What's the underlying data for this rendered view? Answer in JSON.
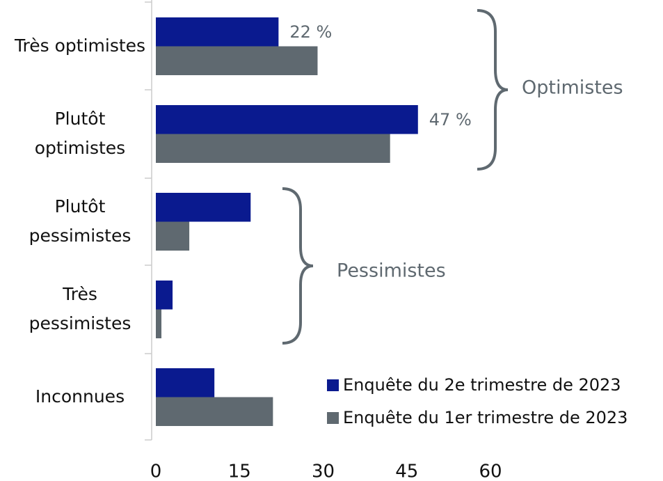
{
  "chart_data": {
    "type": "hbar",
    "categories": [
      "Très optimistes",
      "Plutôt optimistes",
      "Plutôt pessimistes",
      "Très pessimistes",
      "Inconnues"
    ],
    "series": [
      {
        "name": "Enquête du 2e trimestre de 2023",
        "color": "#0a1a8f",
        "values": [
          22,
          47,
          17,
          3,
          10.5
        ],
        "value_labels": [
          "22 %",
          "47 %",
          null,
          null,
          null
        ]
      },
      {
        "name": "Enquête du 1er trimestre de 2023",
        "color": "#5f6970",
        "values": [
          29,
          42,
          6,
          1,
          21
        ]
      }
    ],
    "annotations": [
      "Optimistes",
      "Pessimistes"
    ],
    "xlim": [
      0,
      60
    ],
    "xticks": [
      0,
      15,
      30,
      45,
      60
    ],
    "grid": false,
    "legend": "lower right"
  }
}
